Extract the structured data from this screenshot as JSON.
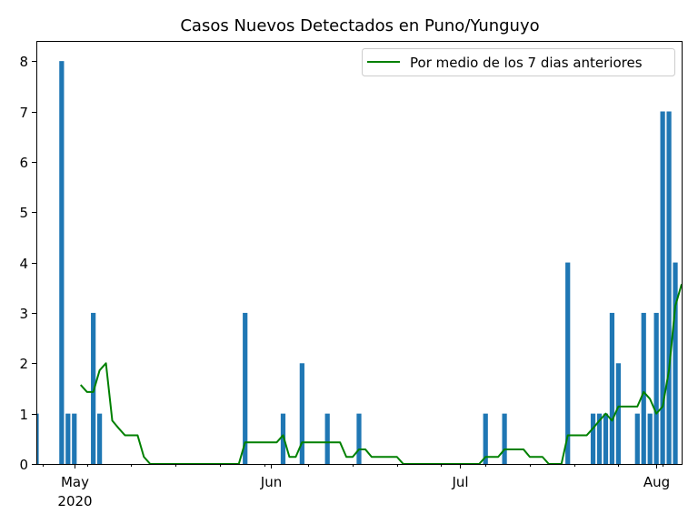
{
  "chart_data": {
    "type": "bar",
    "title": "Casos Nuevos Detectados en Puno/Yunguyo",
    "xlabel": "",
    "ylabel": "",
    "ylim": [
      0,
      8.4
    ],
    "yticks": [
      0,
      1,
      2,
      3,
      4,
      5,
      6,
      7,
      8
    ],
    "xlim": [
      "2020-04-25",
      "2020-08-05"
    ],
    "x_major_ticks": [
      {
        "date": "2020-05-01",
        "label": "May",
        "sublabel": "2020"
      },
      {
        "date": "2020-06-01",
        "label": "Jun"
      },
      {
        "date": "2020-07-01",
        "label": "Jul"
      },
      {
        "date": "2020-08-01",
        "label": "Aug"
      }
    ],
    "x_minor_ticks": [
      "2020-04-26",
      "2020-05-03",
      "2020-05-10",
      "2020-05-17",
      "2020-05-24",
      "2020-05-31",
      "2020-06-07",
      "2020-06-14",
      "2020-06-21",
      "2020-06-28",
      "2020-07-05",
      "2020-07-12",
      "2020-07-19",
      "2020-07-26",
      "2020-08-02"
    ],
    "bar_color": "#1f77b4",
    "line_color": "#008000",
    "legend_position": "top-right",
    "series": [
      {
        "kind": "bar",
        "points": [
          [
            "2020-04-25",
            1
          ],
          [
            "2020-04-29",
            8
          ],
          [
            "2020-04-30",
            1
          ],
          [
            "2020-05-01",
            1
          ],
          [
            "2020-05-04",
            3
          ],
          [
            "2020-05-05",
            1
          ],
          [
            "2020-05-28",
            3
          ],
          [
            "2020-06-03",
            1
          ],
          [
            "2020-06-06",
            2
          ],
          [
            "2020-06-10",
            1
          ],
          [
            "2020-06-15",
            1
          ],
          [
            "2020-07-05",
            1
          ],
          [
            "2020-07-08",
            1
          ],
          [
            "2020-07-18",
            4
          ],
          [
            "2020-07-22",
            1
          ],
          [
            "2020-07-23",
            1
          ],
          [
            "2020-07-24",
            1
          ],
          [
            "2020-07-25",
            3
          ],
          [
            "2020-07-26",
            2
          ],
          [
            "2020-07-29",
            1
          ],
          [
            "2020-07-30",
            3
          ],
          [
            "2020-07-31",
            1
          ],
          [
            "2020-08-01",
            3
          ],
          [
            "2020-08-02",
            7
          ],
          [
            "2020-08-03",
            7
          ],
          [
            "2020-08-04",
            4
          ]
        ]
      },
      {
        "kind": "line",
        "name": "Por medio de los 7 dias anteriores",
        "points": [
          [
            "2020-05-02",
            1.57
          ],
          [
            "2020-05-03",
            1.43
          ],
          [
            "2020-05-04",
            1.43
          ],
          [
            "2020-05-05",
            1.86
          ],
          [
            "2020-05-06",
            2.0
          ],
          [
            "2020-05-07",
            0.86
          ],
          [
            "2020-05-08",
            0.71
          ],
          [
            "2020-05-09",
            0.57
          ],
          [
            "2020-05-10",
            0.57
          ],
          [
            "2020-05-11",
            0.57
          ],
          [
            "2020-05-12",
            0.14
          ],
          [
            "2020-05-13",
            0.0
          ],
          [
            "2020-05-14",
            0.0
          ],
          [
            "2020-05-15",
            0.0
          ],
          [
            "2020-05-16",
            0.0
          ],
          [
            "2020-05-17",
            0.0
          ],
          [
            "2020-05-18",
            0.0
          ],
          [
            "2020-05-19",
            0.0
          ],
          [
            "2020-05-20",
            0.0
          ],
          [
            "2020-05-21",
            0.0
          ],
          [
            "2020-05-22",
            0.0
          ],
          [
            "2020-05-23",
            0.0
          ],
          [
            "2020-05-24",
            0.0
          ],
          [
            "2020-05-25",
            0.0
          ],
          [
            "2020-05-26",
            0.0
          ],
          [
            "2020-05-27",
            0.0
          ],
          [
            "2020-05-28",
            0.43
          ],
          [
            "2020-05-29",
            0.43
          ],
          [
            "2020-05-30",
            0.43
          ],
          [
            "2020-05-31",
            0.43
          ],
          [
            "2020-06-01",
            0.43
          ],
          [
            "2020-06-02",
            0.43
          ],
          [
            "2020-06-03",
            0.57
          ],
          [
            "2020-06-04",
            0.14
          ],
          [
            "2020-06-05",
            0.14
          ],
          [
            "2020-06-06",
            0.43
          ],
          [
            "2020-06-07",
            0.43
          ],
          [
            "2020-06-08",
            0.43
          ],
          [
            "2020-06-09",
            0.43
          ],
          [
            "2020-06-10",
            0.43
          ],
          [
            "2020-06-11",
            0.43
          ],
          [
            "2020-06-12",
            0.43
          ],
          [
            "2020-06-13",
            0.14
          ],
          [
            "2020-06-14",
            0.14
          ],
          [
            "2020-06-15",
            0.29
          ],
          [
            "2020-06-16",
            0.29
          ],
          [
            "2020-06-17",
            0.14
          ],
          [
            "2020-06-18",
            0.14
          ],
          [
            "2020-06-19",
            0.14
          ],
          [
            "2020-06-20",
            0.14
          ],
          [
            "2020-06-21",
            0.14
          ],
          [
            "2020-06-22",
            0.0
          ],
          [
            "2020-06-23",
            0.0
          ],
          [
            "2020-06-24",
            0.0
          ],
          [
            "2020-06-25",
            0.0
          ],
          [
            "2020-06-26",
            0.0
          ],
          [
            "2020-06-27",
            0.0
          ],
          [
            "2020-06-28",
            0.0
          ],
          [
            "2020-06-29",
            0.0
          ],
          [
            "2020-06-30",
            0.0
          ],
          [
            "2020-07-01",
            0.0
          ],
          [
            "2020-07-02",
            0.0
          ],
          [
            "2020-07-03",
            0.0
          ],
          [
            "2020-07-04",
            0.0
          ],
          [
            "2020-07-05",
            0.14
          ],
          [
            "2020-07-06",
            0.14
          ],
          [
            "2020-07-07",
            0.14
          ],
          [
            "2020-07-08",
            0.29
          ],
          [
            "2020-07-09",
            0.29
          ],
          [
            "2020-07-10",
            0.29
          ],
          [
            "2020-07-11",
            0.29
          ],
          [
            "2020-07-12",
            0.14
          ],
          [
            "2020-07-13",
            0.14
          ],
          [
            "2020-07-14",
            0.14
          ],
          [
            "2020-07-15",
            0.0
          ],
          [
            "2020-07-16",
            0.0
          ],
          [
            "2020-07-17",
            0.0
          ],
          [
            "2020-07-18",
            0.57
          ],
          [
            "2020-07-19",
            0.57
          ],
          [
            "2020-07-20",
            0.57
          ],
          [
            "2020-07-21",
            0.57
          ],
          [
            "2020-07-22",
            0.71
          ],
          [
            "2020-07-23",
            0.86
          ],
          [
            "2020-07-24",
            1.0
          ],
          [
            "2020-07-25",
            0.86
          ],
          [
            "2020-07-26",
            1.14
          ],
          [
            "2020-07-27",
            1.14
          ],
          [
            "2020-07-28",
            1.14
          ],
          [
            "2020-07-29",
            1.14
          ],
          [
            "2020-07-30",
            1.43
          ],
          [
            "2020-07-31",
            1.29
          ],
          [
            "2020-08-01",
            1.0
          ],
          [
            "2020-08-02",
            1.14
          ],
          [
            "2020-08-03",
            1.86
          ],
          [
            "2020-08-04",
            3.14
          ],
          [
            "2020-08-05",
            3.57
          ]
        ]
      }
    ]
  }
}
